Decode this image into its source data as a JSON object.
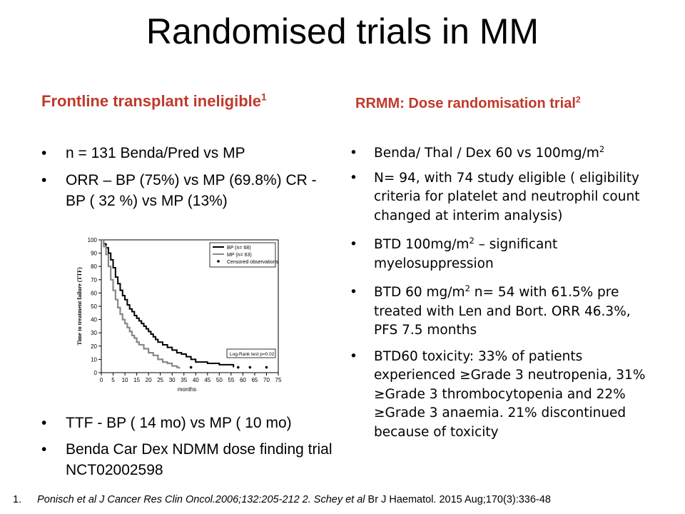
{
  "title": "Randomised trials in MM",
  "left": {
    "heading": "Frontline transplant ineligible",
    "heading_sup": "1",
    "bullets_top": [
      {
        "text": "n = 131 Benda/Pred vs MP"
      },
      {
        "text": "ORR – BP (75%) vs MP (69.8%) CR - BP ( 32 %) vs MP (13%)"
      }
    ],
    "bullets_bottom": [
      {
        "text": "TTF - BP ( 14 mo) vs MP ( 10 mo)"
      },
      {
        "text": "Benda Car Dex NDMM dose finding trial NCT02002598"
      }
    ]
  },
  "right": {
    "heading": "RRMM: Dose randomisation trial",
    "heading_sup": "2",
    "b1_a": "Benda/ Thal / Dex 60 vs 100mg/m",
    "b1_sup": "2",
    "b2": "N= 94, with 74 study eligible ( eligibility criteria for platelet and neutrophil count changed at interim analysis)",
    "b3_a": "BTD 100mg/m",
    "b3_sup": "2",
    "b3_b": " – significant myelosuppression",
    "b4_a": "BTD 60 mg/m",
    "b4_sup": "2",
    "b4_b": " n= 54 with 61.5% pre treated with Len and Bort. ORR 46.3%, PFS 7.5 months",
    "b5": "BTD60 toxicity: 33% of patients experienced ≥Grade 3 neutropenia, 31% ≥Grade 3 thrombocytopenia and 22% ≥Grade 3 anaemia. 21% discontinued because of toxicity"
  },
  "bullet_char": "•",
  "footnote": {
    "num": "1.",
    "text_italic": "Ponisch et al J Cancer Res Clin Oncol.2006;132:205-212 2. Schey et al",
    "text_plain": "  Br J Haematol. 2015 Aug;170(3):336-48"
  },
  "chart_data": {
    "type": "line",
    "ylabel": "Time to treatment failure (TTF)",
    "xlabel": "months",
    "xlim": [
      0,
      75
    ],
    "ylim": [
      0,
      100
    ],
    "xticks": [
      0,
      5,
      10,
      15,
      20,
      25,
      30,
      35,
      40,
      45,
      50,
      55,
      60,
      65,
      70,
      75
    ],
    "yticks": [
      0,
      10,
      20,
      30,
      40,
      50,
      60,
      70,
      80,
      90,
      100
    ],
    "legend": [
      "BP (n= 68)",
      "MP (n= 63)",
      "Censored observations"
    ],
    "annotation": "Log-Rank test p=0.02",
    "series": [
      {
        "name": "BP (n= 68)",
        "color": "#000000",
        "x": [
          0,
          1,
          2,
          3,
          4,
          5,
          6,
          7,
          8,
          9,
          10,
          11,
          12,
          13,
          14,
          15,
          16,
          17,
          18,
          19,
          20,
          21,
          22,
          23,
          24,
          26,
          28,
          30,
          32,
          34,
          36,
          38,
          40,
          45,
          50,
          55,
          56
        ],
        "y": [
          100,
          97,
          94,
          90,
          85,
          79,
          72,
          67,
          62,
          58,
          55,
          51,
          48,
          46,
          43,
          41,
          39,
          37,
          35,
          33,
          31,
          29,
          27,
          25,
          23,
          21,
          19,
          17,
          15,
          14,
          12,
          10,
          8,
          7,
          6,
          6,
          4
        ]
      },
      {
        "name": "MP (n= 63)",
        "color": "#888888",
        "x": [
          0,
          1,
          2,
          3,
          4,
          5,
          6,
          7,
          8,
          9,
          10,
          11,
          12,
          13,
          14,
          15,
          16,
          18,
          20,
          22,
          24,
          26,
          28,
          30,
          32,
          33
        ],
        "y": [
          100,
          95,
          89,
          80,
          70,
          62,
          55,
          49,
          44,
          40,
          37,
          34,
          31,
          28,
          26,
          23,
          21,
          18,
          15,
          13,
          10,
          8,
          7,
          5,
          4,
          3
        ]
      }
    ],
    "censored": {
      "x": [
        38,
        58,
        63,
        70
      ],
      "y": [
        4,
        4,
        4,
        4
      ]
    }
  }
}
